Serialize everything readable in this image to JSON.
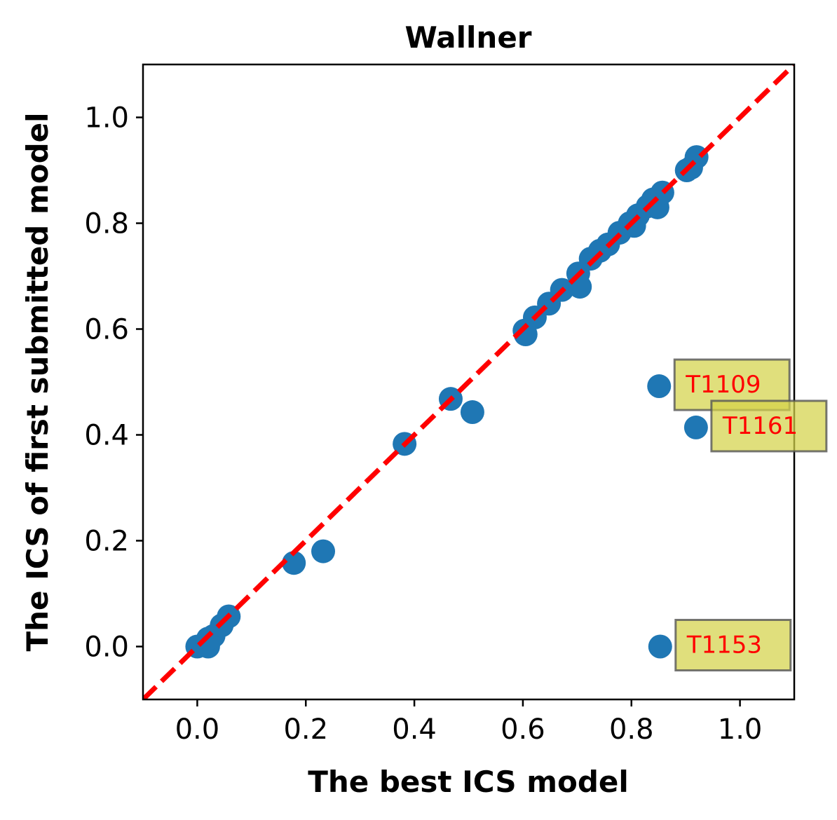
{
  "chart_data": {
    "type": "scatter",
    "title": "Wallner",
    "xlabel": "The best ICS model",
    "ylabel": "The ICS of first submitted model",
    "xlim": [
      -0.1,
      1.1
    ],
    "ylim": [
      -0.1,
      1.1
    ],
    "xticks": [
      "0.0",
      "0.2",
      "0.4",
      "0.6",
      "0.8",
      "1.0"
    ],
    "yticks": [
      "0.0",
      "0.2",
      "0.4",
      "0.6",
      "0.8",
      "1.0"
    ],
    "tick_values": [
      0.0,
      0.2,
      0.4,
      0.6,
      0.8,
      1.0
    ],
    "grid": false,
    "point_color": "#1f77b4",
    "reference_line": {
      "style": "dashed",
      "color": "#ff0000",
      "from": [
        -0.1,
        -0.1
      ],
      "to": [
        1.1,
        1.1
      ]
    },
    "points": [
      {
        "x": 0.0,
        "y": 0.0
      },
      {
        "x": 0.02,
        "y": 0.0
      },
      {
        "x": 0.02,
        "y": 0.015
      },
      {
        "x": 0.03,
        "y": 0.02
      },
      {
        "x": 0.045,
        "y": 0.04
      },
      {
        "x": 0.058,
        "y": 0.057
      },
      {
        "x": 0.178,
        "y": 0.158
      },
      {
        "x": 0.232,
        "y": 0.18
      },
      {
        "x": 0.382,
        "y": 0.383
      },
      {
        "x": 0.467,
        "y": 0.468
      },
      {
        "x": 0.507,
        "y": 0.443
      },
      {
        "x": 0.603,
        "y": 0.597
      },
      {
        "x": 0.605,
        "y": 0.59
      },
      {
        "x": 0.622,
        "y": 0.622
      },
      {
        "x": 0.648,
        "y": 0.648
      },
      {
        "x": 0.672,
        "y": 0.674
      },
      {
        "x": 0.702,
        "y": 0.705
      },
      {
        "x": 0.705,
        "y": 0.68
      },
      {
        "x": 0.725,
        "y": 0.733
      },
      {
        "x": 0.742,
        "y": 0.748
      },
      {
        "x": 0.757,
        "y": 0.76
      },
      {
        "x": 0.778,
        "y": 0.782
      },
      {
        "x": 0.797,
        "y": 0.8
      },
      {
        "x": 0.805,
        "y": 0.795
      },
      {
        "x": 0.812,
        "y": 0.815
      },
      {
        "x": 0.83,
        "y": 0.832
      },
      {
        "x": 0.84,
        "y": 0.845
      },
      {
        "x": 0.848,
        "y": 0.83
      },
      {
        "x": 0.857,
        "y": 0.858
      },
      {
        "x": 0.902,
        "y": 0.9
      },
      {
        "x": 0.91,
        "y": 0.905
      },
      {
        "x": 0.92,
        "y": 0.925
      },
      {
        "x": 0.851,
        "y": 0.492
      },
      {
        "x": 0.919,
        "y": 0.414
      },
      {
        "x": 0.853,
        "y": 0.0
      }
    ],
    "annotations": [
      {
        "label": "T1109",
        "x": 0.851,
        "y": 0.492,
        "text_color": "#ff0000",
        "box_color": "#d4d24a"
      },
      {
        "label": "T1161",
        "x": 0.919,
        "y": 0.414,
        "text_color": "#ff0000",
        "box_color": "#d4d24a"
      },
      {
        "label": "T1153",
        "x": 0.853,
        "y": 0.0,
        "text_color": "#ff0000",
        "box_color": "#d4d24a"
      }
    ]
  }
}
